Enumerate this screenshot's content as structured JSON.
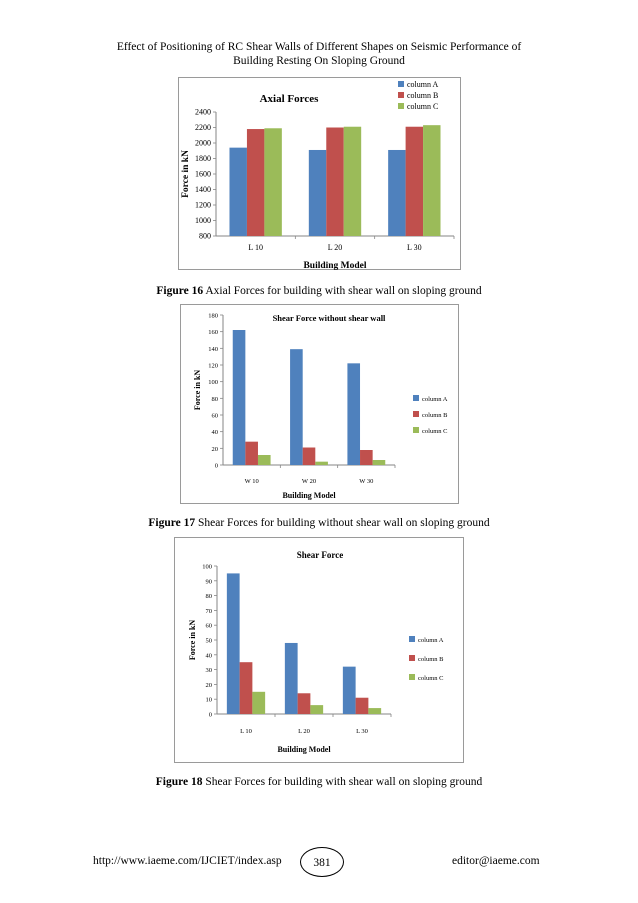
{
  "header": {
    "line1": "Effect of Positioning of RC Shear Walls of Different Shapes on Seismic Performance of",
    "line2": "Building Resting On Sloping Ground"
  },
  "figures": [
    {
      "caption_label": "Figure 16",
      "caption_text": " Axial Forces for building with shear wall on sloping ground"
    },
    {
      "caption_label": "Figure 17",
      "caption_text": " Shear Forces for building without shear wall on sloping ground"
    },
    {
      "caption_label": "Figure 18",
      "caption_text": " Shear Forces for building with shear wall on sloping ground"
    }
  ],
  "footer": {
    "url": "http://www.iaeme.com/IJCIET/index.asp",
    "page_number": "381",
    "email": "editor@iaeme.com"
  },
  "colors": {
    "column_a": "#4f81bd",
    "column_b": "#c0504d",
    "column_c": "#9bbb59",
    "axis": "#868686"
  },
  "chart_data": [
    {
      "type": "bar",
      "title": "Axial Forces",
      "xlabel": "Building Model",
      "ylabel": "Force in kN",
      "categories": [
        "L 10",
        "L 20",
        "L 30"
      ],
      "series": [
        {
          "name": "column A",
          "values": [
            1940,
            1910,
            1910
          ]
        },
        {
          "name": "column B",
          "values": [
            2180,
            2200,
            2210
          ]
        },
        {
          "name": "column C",
          "values": [
            2190,
            2210,
            2230
          ]
        }
      ],
      "ylim": [
        800,
        2400
      ],
      "yticks": [
        "800",
        "1000",
        "1200",
        "1400",
        "1600",
        "1800",
        "2000",
        "2200",
        "2400"
      ],
      "legend": "top-right"
    },
    {
      "type": "bar",
      "title": "Shear Force without shear wall",
      "xlabel": "Building Model",
      "ylabel": "Force in kN",
      "categories": [
        "W 10",
        "W 20",
        "W 30"
      ],
      "series": [
        {
          "name": "column A",
          "values": [
            162,
            139,
            122
          ]
        },
        {
          "name": "column B",
          "values": [
            28,
            21,
            18
          ]
        },
        {
          "name": "column C",
          "values": [
            12,
            4,
            6
          ]
        }
      ],
      "ylim": [
        0,
        180
      ],
      "yticks": [
        "0",
        "20",
        "40",
        "60",
        "80",
        "100",
        "120",
        "140",
        "160",
        "180"
      ],
      "legend": "right"
    },
    {
      "type": "bar",
      "title": "Shear Force",
      "xlabel": "Building Model",
      "ylabel": "Force in kN",
      "categories": [
        "L 10",
        "L 20",
        "L 30"
      ],
      "series": [
        {
          "name": "column A",
          "values": [
            95,
            48,
            32
          ]
        },
        {
          "name": "column B",
          "values": [
            35,
            14,
            11
          ]
        },
        {
          "name": "column C",
          "values": [
            15,
            6,
            4
          ]
        }
      ],
      "ylim": [
        0,
        100
      ],
      "yticks": [
        "0",
        "10",
        "20",
        "30",
        "40",
        "50",
        "60",
        "70",
        "80",
        "90",
        "100"
      ],
      "legend": "right"
    }
  ]
}
